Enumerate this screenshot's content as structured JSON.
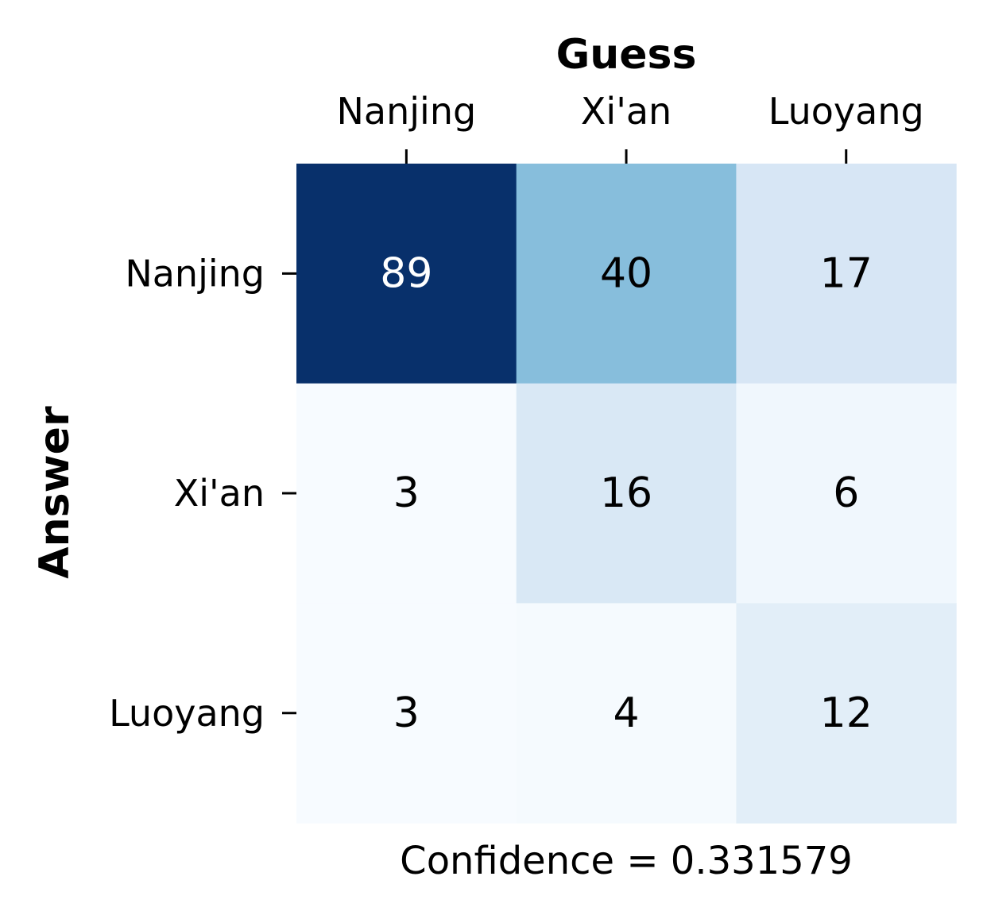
{
  "chart_data": {
    "type": "heatmap",
    "x_axis_title": "Guess",
    "y_axis_title": "Answer",
    "x_categories": [
      "Nanjing",
      "Xi'an",
      "Luoyang"
    ],
    "y_categories": [
      "Nanjing",
      "Xi'an",
      "Luoyang"
    ],
    "values": [
      [
        89,
        40,
        17
      ],
      [
        3,
        16,
        6
      ],
      [
        3,
        4,
        12
      ]
    ],
    "colormap": "Blues",
    "value_range": [
      3,
      89
    ],
    "colorbar": false,
    "x_axis_position": "top",
    "footer": "Confidence = 0.331579"
  }
}
